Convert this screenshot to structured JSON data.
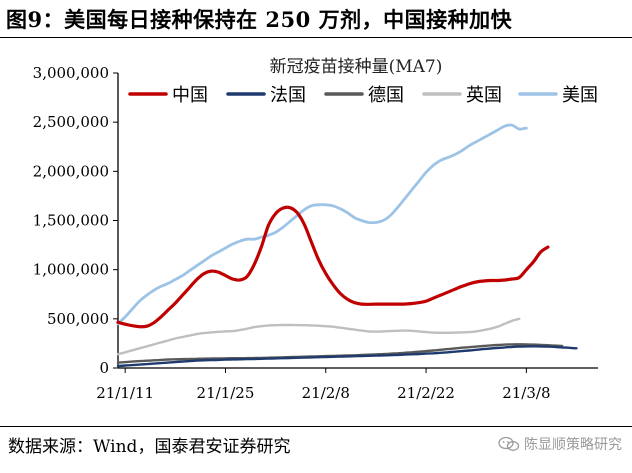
{
  "figure": {
    "title": "图9：美国每日接种保持在 250 万剂，中国接种加快",
    "source": "数据来源：Wind，国泰君安证券研究",
    "watermark": "陈显顺策略研究"
  },
  "chart_data": {
    "type": "line",
    "title": "新冠疫苗接种量(MA7)",
    "xlabel": "",
    "ylabel": "",
    "x_ticks": [
      "21/1/11",
      "21/1/25",
      "21/2/8",
      "21/2/22",
      "21/3/8"
    ],
    "ylim": [
      0,
      3000000
    ],
    "y_ticks": [
      "0",
      "500,000",
      "1,000,000",
      "1,500,000",
      "2,000,000",
      "2,500,000",
      "3,000,000"
    ],
    "y_tick_values": [
      0,
      500000,
      1000000,
      1500000,
      2000000,
      2500000,
      3000000
    ],
    "grid": false,
    "legend_position": "top",
    "x": [
      "21/1/10",
      "21/1/11",
      "21/1/12",
      "21/1/13",
      "21/1/14",
      "21/1/15",
      "21/1/16",
      "21/1/17",
      "21/1/18",
      "21/1/19",
      "21/1/20",
      "21/1/21",
      "21/1/22",
      "21/1/23",
      "21/1/24",
      "21/1/25",
      "21/1/26",
      "21/1/27",
      "21/1/28",
      "21/1/29",
      "21/1/30",
      "21/1/31",
      "21/2/1",
      "21/2/2",
      "21/2/3",
      "21/2/4",
      "21/2/5",
      "21/2/6",
      "21/2/7",
      "21/2/8",
      "21/2/9",
      "21/2/10",
      "21/2/11",
      "21/2/12",
      "21/2/13",
      "21/2/14",
      "21/2/15",
      "21/2/16",
      "21/2/17",
      "21/2/18",
      "21/2/19",
      "21/2/20",
      "21/2/21",
      "21/2/22",
      "21/2/23",
      "21/2/24",
      "21/2/25",
      "21/2/26",
      "21/2/27",
      "21/2/28",
      "21/3/1",
      "21/3/2",
      "21/3/3",
      "21/3/4",
      "21/3/5",
      "21/3/6",
      "21/3/7",
      "21/3/8",
      "21/3/9",
      "21/3/10",
      "21/3/11",
      "21/3/12",
      "21/3/13",
      "21/3/14",
      "21/3/15",
      "21/3/16",
      "21/3/17",
      "21/3/18"
    ],
    "series": [
      {
        "name": "中国",
        "color": "#c00000",
        "width": 3.2,
        "values": [
          465000,
          445000,
          430000,
          420000,
          425000,
          460000,
          520000,
          590000,
          660000,
          740000,
          820000,
          900000,
          960000,
          985000,
          975000,
          940000,
          905000,
          895000,
          930000,
          1050000,
          1230000,
          1450000,
          1570000,
          1625000,
          1630000,
          1580000,
          1460000,
          1280000,
          1100000,
          960000,
          850000,
          760000,
          700000,
          665000,
          650000,
          648000,
          650000,
          650000,
          650000,
          650000,
          650000,
          655000,
          665000,
          680000,
          710000,
          740000,
          770000,
          800000,
          830000,
          855000,
          875000,
          885000,
          890000,
          890000,
          895000,
          905000,
          920000,
          1000000,
          1080000,
          1180000,
          1230000,
          null,
          null,
          null,
          null,
          null,
          null,
          null
        ]
      },
      {
        "name": "法国",
        "color": "#1f3a6e",
        "width": 2.4,
        "values": [
          20000,
          25000,
          30000,
          35000,
          40000,
          45000,
          50000,
          55000,
          60000,
          65000,
          70000,
          75000,
          78000,
          80000,
          82000,
          85000,
          87000,
          88000,
          90000,
          92000,
          94000,
          96000,
          98000,
          100000,
          102000,
          104000,
          106000,
          108000,
          110000,
          112000,
          114000,
          116000,
          118000,
          120000,
          122000,
          124000,
          126000,
          128000,
          130000,
          133000,
          136000,
          139000,
          142000,
          146000,
          150000,
          155000,
          160000,
          166000,
          172000,
          178000,
          185000,
          192000,
          198000,
          204000,
          210000,
          215000,
          218000,
          220000,
          221000,
          220000,
          218000,
          215000,
          210000,
          205000,
          200000,
          null,
          null,
          null
        ]
      },
      {
        "name": "德国",
        "color": "#595959",
        "width": 2.4,
        "values": [
          55000,
          60000,
          65000,
          70000,
          74000,
          78000,
          82000,
          86000,
          88000,
          90000,
          92000,
          94000,
          96000,
          97000,
          98000,
          99000,
          100000,
          100000,
          101000,
          102000,
          103000,
          105000,
          107000,
          109000,
          111000,
          113000,
          115000,
          117000,
          119000,
          121000,
          123000,
          125000,
          127000,
          129000,
          132000,
          135000,
          138000,
          141000,
          145000,
          150000,
          155000,
          160000,
          166000,
          172000,
          178000,
          185000,
          192000,
          199000,
          206000,
          212000,
          218000,
          224000,
          230000,
          234000,
          238000,
          240000,
          241000,
          240000,
          238000,
          235000,
          232000,
          228000,
          225000,
          null,
          null,
          null,
          null,
          null
        ]
      },
      {
        "name": "英国",
        "color": "#bfbfbf",
        "width": 2.4,
        "values": [
          140000,
          160000,
          180000,
          200000,
          220000,
          240000,
          260000,
          280000,
          300000,
          315000,
          330000,
          345000,
          355000,
          362000,
          368000,
          372000,
          375000,
          385000,
          400000,
          415000,
          425000,
          432000,
          435000,
          437000,
          437000,
          436000,
          435000,
          433000,
          430000,
          425000,
          420000,
          410000,
          400000,
          390000,
          380000,
          372000,
          370000,
          372000,
          375000,
          378000,
          380000,
          378000,
          372000,
          365000,
          360000,
          358000,
          358000,
          360000,
          362000,
          365000,
          372000,
          385000,
          400000,
          420000,
          450000,
          480000,
          500000,
          null,
          null,
          null,
          null,
          null,
          null,
          null,
          null,
          null,
          null,
          null
        ]
      },
      {
        "name": "美国",
        "color": "#9dc3e6",
        "width": 2.8,
        "values": [
          450000,
          520000,
          600000,
          680000,
          740000,
          790000,
          830000,
          860000,
          900000,
          940000,
          990000,
          1040000,
          1090000,
          1140000,
          1180000,
          1220000,
          1260000,
          1290000,
          1310000,
          1310000,
          1330000,
          1350000,
          1380000,
          1430000,
          1490000,
          1550000,
          1610000,
          1650000,
          1660000,
          1660000,
          1650000,
          1620000,
          1580000,
          1530000,
          1500000,
          1480000,
          1480000,
          1500000,
          1550000,
          1630000,
          1720000,
          1810000,
          1900000,
          1990000,
          2060000,
          2110000,
          2140000,
          2170000,
          2210000,
          2260000,
          2300000,
          2340000,
          2380000,
          2420000,
          2460000,
          2470000,
          2430000,
          2440000,
          null,
          null,
          null,
          null,
          null,
          null,
          null,
          null,
          null,
          null
        ]
      }
    ]
  }
}
